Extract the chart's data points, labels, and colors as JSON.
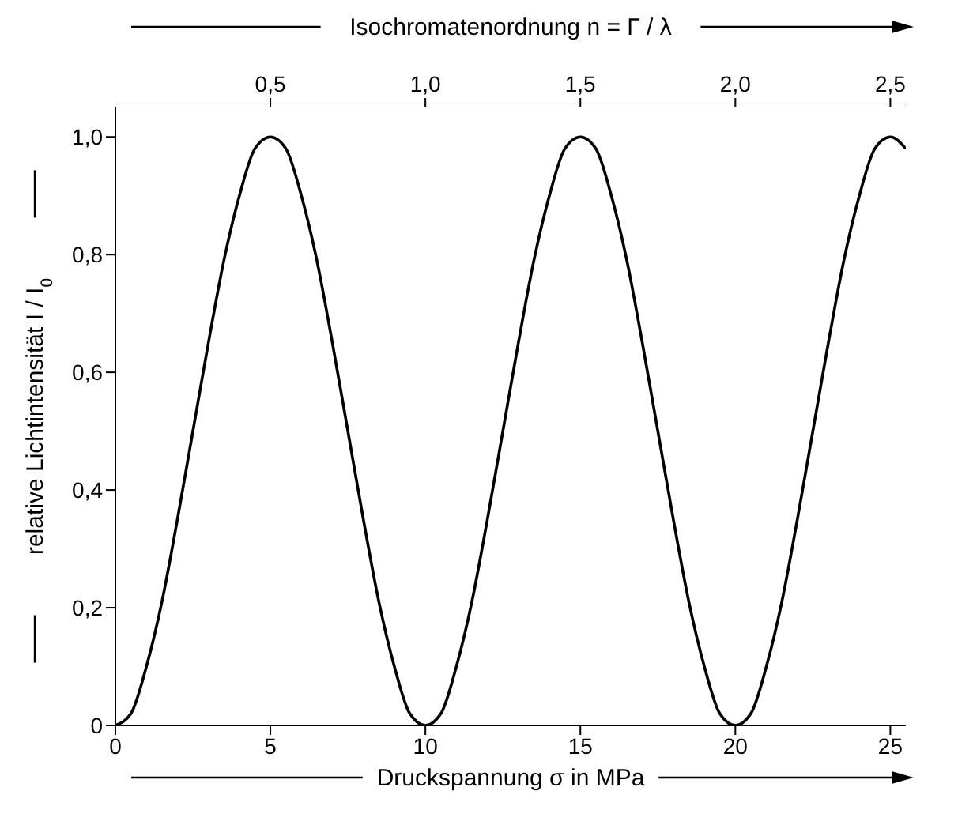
{
  "chart_data": {
    "type": "line",
    "xlabel": "Druckspannung σ in MPa",
    "x2label": "Isochromatenordnung n = Γ / λ",
    "ylabel": "relative Lichtintensität I / I$_{0}$",
    "x": [
      0,
      0.5,
      1,
      1.5,
      2,
      2.5,
      3,
      3.5,
      4,
      4.5,
      5,
      5.5,
      6,
      6.5,
      7,
      7.5,
      8,
      8.5,
      9,
      9.5,
      10,
      10.5,
      11,
      11.5,
      12,
      12.5,
      13,
      13.5,
      14,
      14.5,
      15,
      15.5,
      16,
      16.5,
      17,
      17.5,
      18,
      18.5,
      19,
      19.5,
      20,
      20.5,
      21,
      21.5,
      22,
      22.5,
      23,
      23.5,
      24,
      24.5,
      25,
      25.5
    ],
    "series": [
      {
        "color": "#000000",
        "values": [
          0,
          0.02,
          0.1,
          0.21,
          0.35,
          0.5,
          0.65,
          0.79,
          0.9,
          0.98,
          1,
          0.98,
          0.9,
          0.79,
          0.65,
          0.5,
          0.35,
          0.21,
          0.1,
          0.02,
          0,
          0.02,
          0.1,
          0.21,
          0.35,
          0.5,
          0.65,
          0.79,
          0.9,
          0.98,
          1,
          0.98,
          0.9,
          0.79,
          0.65,
          0.5,
          0.35,
          0.21,
          0.1,
          0.02,
          0,
          0.02,
          0.1,
          0.21,
          0.35,
          0.5,
          0.65,
          0.79,
          0.9,
          0.98,
          1,
          0.98
        ]
      }
    ],
    "xlim": [
      0,
      25.5
    ],
    "xticks": [
      0,
      5,
      10,
      15,
      20,
      25
    ],
    "x2lim": [
      0,
      2.55
    ],
    "x2ticks": [
      {
        "value": 0.5,
        "label": "0,5"
      },
      {
        "value": 1,
        "label": "1,0"
      },
      {
        "value": 1.5,
        "label": "1,5"
      },
      {
        "value": 2,
        "label": "2,0"
      },
      {
        "value": 2.5,
        "label": "2,5"
      }
    ],
    "ylim": [
      0,
      1.05
    ],
    "yticks": [
      {
        "value": 0,
        "label": "0"
      },
      {
        "value": 0.2,
        "label": "0,2"
      },
      {
        "value": 0.4,
        "label": "0,4"
      },
      {
        "value": 0.6,
        "label": "0,6"
      },
      {
        "value": 0.8,
        "label": "0,8"
      },
      {
        "value": 1,
        "label": "1,0"
      }
    ],
    "grid": false
  }
}
